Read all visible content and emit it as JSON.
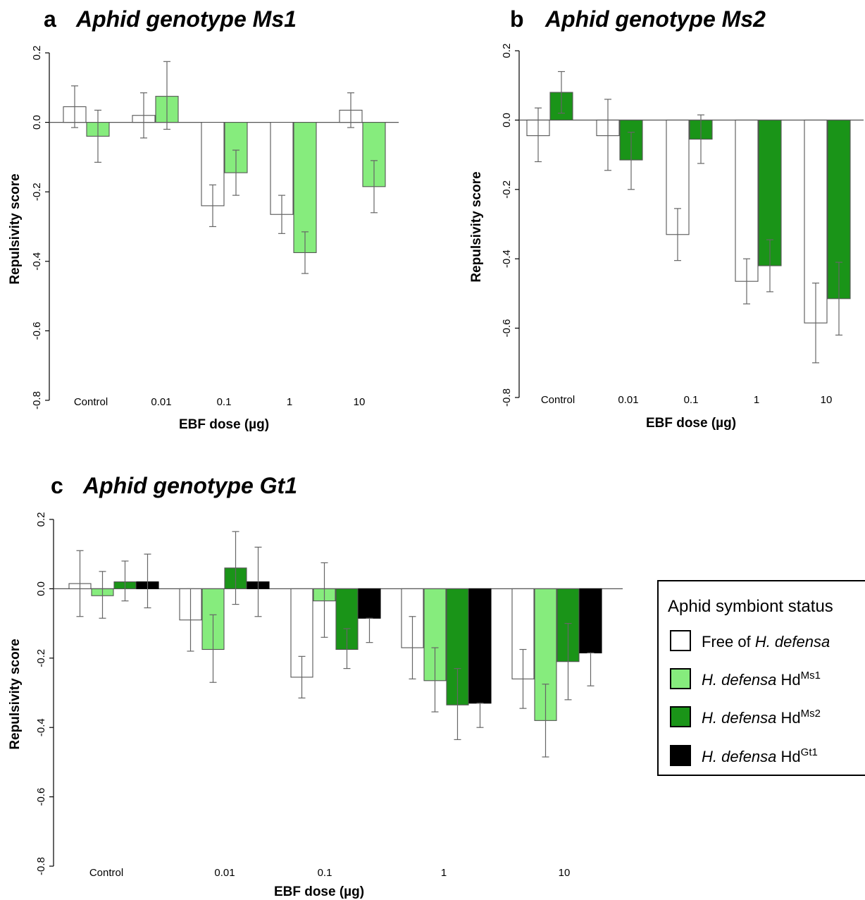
{
  "legend": {
    "title": "Aphid symbiont status",
    "entries": [
      {
        "key": "free",
        "prefix": "Free of ",
        "italic": "H. defensa",
        "hd": "",
        "sup": "",
        "color": "#ffffff"
      },
      {
        "key": "ms1",
        "prefix": "",
        "italic": "H. defensa",
        "hd": " Hd",
        "sup": "Ms1",
        "color": "#86ec7d"
      },
      {
        "key": "ms2",
        "prefix": "",
        "italic": "H. defensa",
        "hd": " Hd",
        "sup": "Ms2",
        "color": "#1a9418"
      },
      {
        "key": "gt1",
        "prefix": "",
        "italic": "H. defensa",
        "hd": " Hd",
        "sup": "Gt1",
        "color": "#000000"
      }
    ]
  },
  "chart_data": [
    {
      "type": "bar",
      "panel": "a",
      "title": "Aphid genotype Ms1",
      "xlabel": "EBF dose (µg)",
      "ylabel": "Repulsivity score",
      "ylim": [
        -0.8,
        0.2
      ],
      "yticks": [
        "-0.8",
        "-0.6",
        "-0.4",
        "-0.2",
        "0.0",
        "0.2"
      ],
      "categories": [
        "Control",
        "0.01",
        "0.1",
        "1",
        "10"
      ],
      "series": [
        {
          "key": "free",
          "color": "#ffffff",
          "values": [
            0.045,
            0.02,
            -0.24,
            -0.265,
            0.035
          ],
          "err_low": [
            -0.015,
            -0.045,
            -0.3,
            -0.32,
            -0.015
          ],
          "err_high": [
            0.105,
            0.085,
            -0.18,
            -0.21,
            0.085
          ]
        },
        {
          "key": "ms1",
          "color": "#86ec7d",
          "values": [
            -0.04,
            0.075,
            -0.145,
            -0.375,
            -0.185
          ],
          "err_low": [
            -0.115,
            -0.02,
            -0.21,
            -0.435,
            -0.26
          ],
          "err_high": [
            0.035,
            0.175,
            -0.08,
            -0.315,
            -0.11
          ]
        }
      ]
    },
    {
      "type": "bar",
      "panel": "b",
      "title": "Aphid genotype Ms2",
      "xlabel": "EBF dose (µg)",
      "ylabel": "Repulsivity score",
      "ylim": [
        -0.8,
        0.2
      ],
      "yticks": [
        "-0.8",
        "-0.6",
        "-0.4",
        "-0.2",
        "0.0",
        "0.2"
      ],
      "categories": [
        "Control",
        "0.01",
        "0.1",
        "1",
        "10"
      ],
      "series": [
        {
          "key": "free",
          "color": "#ffffff",
          "values": [
            -0.045,
            -0.045,
            -0.33,
            -0.465,
            -0.585
          ],
          "err_low": [
            -0.12,
            -0.145,
            -0.405,
            -0.53,
            -0.7
          ],
          "err_high": [
            0.035,
            0.06,
            -0.255,
            -0.4,
            -0.47
          ]
        },
        {
          "key": "ms2",
          "color": "#1a9418",
          "values": [
            0.08,
            -0.115,
            -0.055,
            -0.42,
            -0.515
          ],
          "err_low": [
            0.02,
            -0.2,
            -0.125,
            -0.495,
            -0.62
          ],
          "err_high": [
            0.14,
            -0.035,
            0.015,
            -0.345,
            -0.41
          ]
        }
      ]
    },
    {
      "type": "bar",
      "panel": "c",
      "title": "Aphid genotype Gt1",
      "xlabel": "EBF dose (µg)",
      "ylabel": "Repulsivity score",
      "ylim": [
        -0.8,
        0.2
      ],
      "yticks": [
        "-0.8",
        "-0.6",
        "-0.4",
        "-0.2",
        "0.0",
        "0.2"
      ],
      "categories": [
        "Control",
        "0.01",
        "0.1",
        "1",
        "10"
      ],
      "series": [
        {
          "key": "free",
          "color": "#ffffff",
          "values": [
            0.015,
            -0.09,
            -0.255,
            -0.17,
            -0.26
          ],
          "err_low": [
            -0.08,
            -0.18,
            -0.315,
            -0.26,
            -0.345
          ],
          "err_high": [
            0.11,
            0.0,
            -0.195,
            -0.08,
            -0.175
          ]
        },
        {
          "key": "ms1",
          "color": "#86ec7d",
          "values": [
            -0.02,
            -0.175,
            -0.035,
            -0.265,
            -0.38
          ],
          "err_low": [
            -0.085,
            -0.27,
            -0.14,
            -0.355,
            -0.485
          ],
          "err_high": [
            0.05,
            -0.075,
            0.075,
            -0.17,
            -0.275
          ]
        },
        {
          "key": "ms2",
          "color": "#1a9418",
          "values": [
            0.02,
            0.06,
            -0.175,
            -0.335,
            -0.21
          ],
          "err_low": [
            -0.035,
            -0.045,
            -0.23,
            -0.435,
            -0.32
          ],
          "err_high": [
            0.08,
            0.165,
            -0.115,
            -0.23,
            -0.1
          ]
        },
        {
          "key": "gt1",
          "color": "#000000",
          "values": [
            0.02,
            0.02,
            -0.085,
            -0.33,
            -0.185
          ],
          "err_low": [
            -0.055,
            -0.08,
            -0.155,
            -0.4,
            -0.28
          ],
          "err_high": [
            0.1,
            0.12,
            -0.085,
            -0.33,
            -0.185
          ]
        }
      ]
    }
  ]
}
